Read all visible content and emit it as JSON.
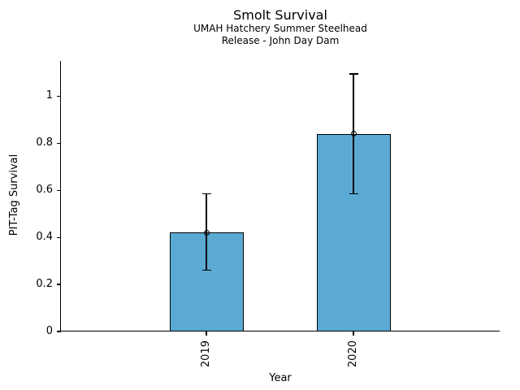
{
  "chart_data": {
    "type": "bar",
    "title": "Smolt Survival",
    "subtitle_lines": [
      "UMAH Hatchery Summer Steelhead",
      "Release - John Day Dam"
    ],
    "xlabel": "Year",
    "ylabel": "PIT-Tag Survival",
    "categories": [
      "2019",
      "2020"
    ],
    "values": [
      0.42,
      0.84
    ],
    "error_low": [
      0.26,
      0.585
    ],
    "error_high": [
      0.585,
      1.095
    ],
    "y_ticks": [
      0,
      0.2,
      0.4,
      0.6,
      0.8,
      1
    ],
    "ylim": [
      0,
      1.15
    ],
    "grid": false,
    "legend": "none",
    "marker": "open-circle",
    "bar_color": "#5AAAD4",
    "bar_edge_color": "#000000",
    "error_bar_color": "#000000",
    "background": "#FFFFFF"
  }
}
